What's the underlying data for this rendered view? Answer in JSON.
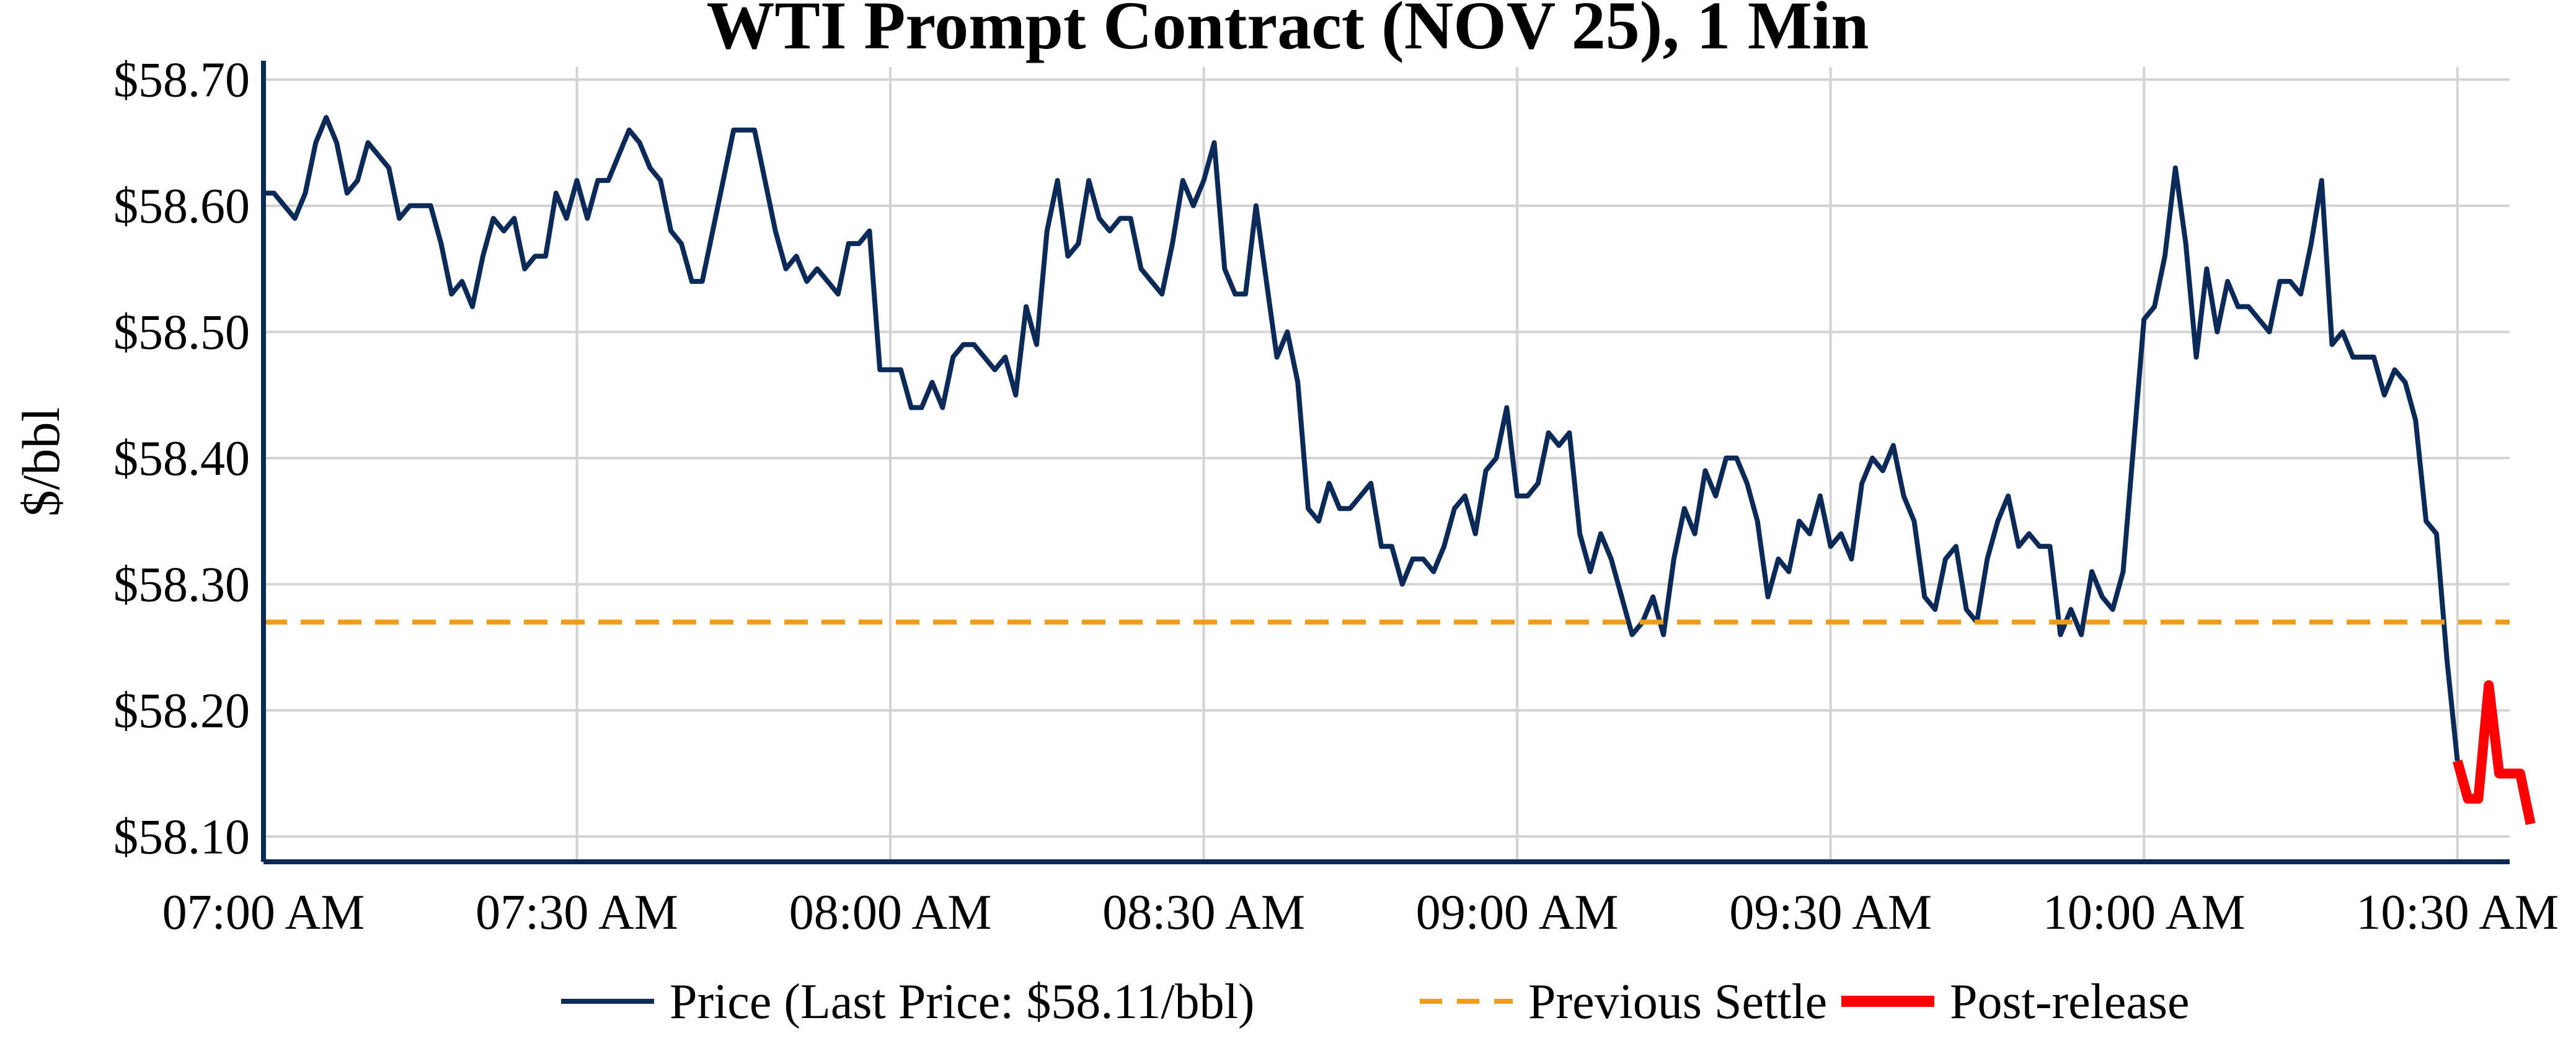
{
  "chart_data": {
    "type": "line",
    "title": "WTI Prompt Contract (NOV 25), 1 Min",
    "ylabel": "$/bbl",
    "xlabel": "",
    "ylim": [
      58.08,
      58.71
    ],
    "xlim_minutes_from_07_00": [
      0,
      215
    ],
    "y_ticks": [
      58.1,
      58.2,
      58.3,
      58.4,
      58.5,
      58.6,
      58.7
    ],
    "y_tick_labels": [
      "$58.10",
      "$58.20",
      "$58.30",
      "$58.40",
      "$58.50",
      "$58.60",
      "$58.70"
    ],
    "x_ticks": [
      "07:00 AM",
      "07:30 AM",
      "08:00 AM",
      "08:30 AM",
      "09:00 AM",
      "09:30 AM",
      "10:00 AM",
      "10:30 AM"
    ],
    "grid": true,
    "legend_position": "bottom",
    "series": [
      {
        "name": "Price (Last Price: $58.11/bbl)",
        "color": "#0b2a57",
        "style": "solid",
        "x": [
          "07:00",
          "07:01",
          "07:02",
          "07:03",
          "07:04",
          "07:05",
          "07:06",
          "07:07",
          "07:08",
          "07:09",
          "07:10",
          "07:11",
          "07:12",
          "07:13",
          "07:14",
          "07:15",
          "07:16",
          "07:17",
          "07:18",
          "07:19",
          "07:20",
          "07:21",
          "07:22",
          "07:23",
          "07:24",
          "07:25",
          "07:26",
          "07:27",
          "07:28",
          "07:29",
          "07:30",
          "07:31",
          "07:32",
          "07:33",
          "07:34",
          "07:35",
          "07:36",
          "07:37",
          "07:38",
          "07:39",
          "07:40",
          "07:41",
          "07:42",
          "07:43",
          "07:44",
          "07:45",
          "07:46",
          "07:47",
          "07:48",
          "07:49",
          "07:50",
          "07:51",
          "07:52",
          "07:53",
          "07:54",
          "07:55",
          "07:56",
          "07:57",
          "07:58",
          "07:59",
          "08:00",
          "08:01",
          "08:02",
          "08:03",
          "08:04",
          "08:05",
          "08:06",
          "08:07",
          "08:08",
          "08:09",
          "08:10",
          "08:11",
          "08:12",
          "08:13",
          "08:14",
          "08:15",
          "08:16",
          "08:17",
          "08:18",
          "08:19",
          "08:20",
          "08:21",
          "08:22",
          "08:23",
          "08:24",
          "08:25",
          "08:26",
          "08:27",
          "08:28",
          "08:29",
          "08:30",
          "08:31",
          "08:32",
          "08:33",
          "08:34",
          "08:35",
          "08:36",
          "08:37",
          "08:38",
          "08:39",
          "08:40",
          "08:41",
          "08:42",
          "08:43",
          "08:44",
          "08:45",
          "08:46",
          "08:47",
          "08:48",
          "08:49",
          "08:50",
          "08:51",
          "08:52",
          "08:53",
          "08:54",
          "08:55",
          "08:56",
          "08:57",
          "08:58",
          "08:59",
          "09:00",
          "09:01",
          "09:02",
          "09:03",
          "09:04",
          "09:05",
          "09:06",
          "09:07",
          "09:08",
          "09:09",
          "09:10",
          "09:11",
          "09:12",
          "09:13",
          "09:14",
          "09:15",
          "09:16",
          "09:17",
          "09:18",
          "09:19",
          "09:20",
          "09:21",
          "09:22",
          "09:23",
          "09:24",
          "09:25",
          "09:26",
          "09:27",
          "09:28",
          "09:29",
          "09:30",
          "09:31",
          "09:32",
          "09:33",
          "09:34",
          "09:35",
          "09:36",
          "09:37",
          "09:38",
          "09:39",
          "09:40",
          "09:41",
          "09:42",
          "09:43",
          "09:44",
          "09:45",
          "09:46",
          "09:47",
          "09:48",
          "09:49",
          "09:50",
          "09:51",
          "09:52",
          "09:53",
          "09:54",
          "09:55",
          "09:56",
          "09:57",
          "09:58",
          "09:59",
          "10:00",
          "10:01",
          "10:02",
          "10:03",
          "10:04",
          "10:05",
          "10:06",
          "10:07",
          "10:08",
          "10:09",
          "10:10",
          "10:11",
          "10:12",
          "10:13",
          "10:14",
          "10:15",
          "10:16",
          "10:17",
          "10:18",
          "10:19",
          "10:20",
          "10:21",
          "10:22",
          "10:23",
          "10:24",
          "10:25",
          "10:26",
          "10:27",
          "10:28",
          "10:29",
          "10:30"
        ],
        "values": [
          58.61,
          58.61,
          58.6,
          58.59,
          58.61,
          58.65,
          58.67,
          58.65,
          58.61,
          58.62,
          58.65,
          58.64,
          58.63,
          58.59,
          58.6,
          58.6,
          58.6,
          58.57,
          58.53,
          58.54,
          58.52,
          58.56,
          58.59,
          58.58,
          58.59,
          58.55,
          58.56,
          58.56,
          58.61,
          58.59,
          58.62,
          58.59,
          58.62,
          58.62,
          58.64,
          58.66,
          58.65,
          58.63,
          58.62,
          58.58,
          58.57,
          58.54,
          58.54,
          58.58,
          58.62,
          58.66,
          58.66,
          58.66,
          58.62,
          58.58,
          58.55,
          58.56,
          58.54,
          58.55,
          58.54,
          58.53,
          58.57,
          58.57,
          58.58,
          58.47,
          58.47,
          58.47,
          58.44,
          58.44,
          58.46,
          58.44,
          58.48,
          58.49,
          58.49,
          58.48,
          58.47,
          58.48,
          58.45,
          58.52,
          58.49,
          58.58,
          58.62,
          58.56,
          58.57,
          58.62,
          58.59,
          58.58,
          58.59,
          58.59,
          58.55,
          58.54,
          58.53,
          58.57,
          58.62,
          58.6,
          58.62,
          58.65,
          58.55,
          58.53,
          58.53,
          58.6,
          58.54,
          58.48,
          58.5,
          58.46,
          58.36,
          58.35,
          58.38,
          58.36,
          58.36,
          58.37,
          58.38,
          58.33,
          58.33,
          58.3,
          58.32,
          58.32,
          58.31,
          58.33,
          58.36,
          58.37,
          58.34,
          58.39,
          58.4,
          58.44,
          58.37,
          58.37,
          58.38,
          58.42,
          58.41,
          58.42,
          58.34,
          58.31,
          58.34,
          58.32,
          58.29,
          58.26,
          58.27,
          58.29,
          58.26,
          58.32,
          58.36,
          58.34,
          58.39,
          58.37,
          58.4,
          58.4,
          58.38,
          58.35,
          58.29,
          58.32,
          58.31,
          58.35,
          58.34,
          58.37,
          58.33,
          58.34,
          58.32,
          58.38,
          58.4,
          58.39,
          58.41,
          58.37,
          58.35,
          58.29,
          58.28,
          58.32,
          58.33,
          58.28,
          58.27,
          58.32,
          58.35,
          58.37,
          58.33,
          58.34,
          58.33,
          58.33,
          58.26,
          58.28,
          58.26,
          58.31,
          58.29,
          58.28,
          58.31,
          58.41,
          58.51,
          58.52,
          58.56,
          58.63,
          58.57,
          58.48,
          58.55,
          58.5,
          58.54,
          58.52,
          58.52,
          58.51,
          58.5,
          58.54,
          58.54,
          58.53,
          58.57,
          58.62,
          58.49,
          58.5,
          58.48,
          58.48,
          58.48,
          58.45,
          58.47,
          58.46,
          58.43,
          58.35,
          58.34,
          58.24,
          58.16
        ]
      },
      {
        "name": "Previous Settle",
        "color": "#f29b14",
        "style": "dashed",
        "value": 58.27
      },
      {
        "name": "Post-release",
        "color": "#ff0000",
        "style": "solid",
        "x": [
          "10:30",
          "10:31",
          "10:32",
          "10:33",
          "10:34",
          "10:35",
          "10:36",
          "10:37"
        ],
        "values": [
          58.16,
          58.13,
          58.13,
          58.22,
          58.15,
          58.15,
          58.15,
          58.11
        ]
      }
    ]
  }
}
